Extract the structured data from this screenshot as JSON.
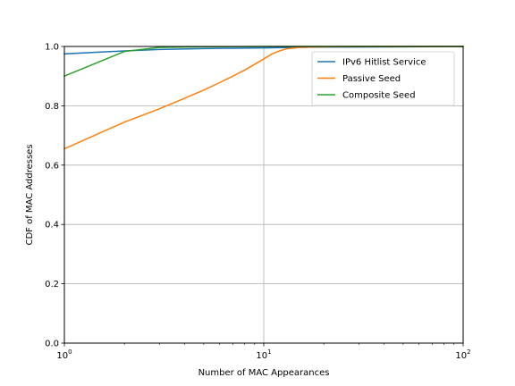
{
  "chart_data": {
    "type": "line",
    "title": "",
    "xlabel": "Number of MAC Appearances",
    "ylabel": "CDF of MAC Addresses",
    "xscale": "log",
    "xlim": [
      1,
      100
    ],
    "ylim": [
      0.0,
      1.0
    ],
    "xticks": [
      {
        "value": 1,
        "base": "10",
        "exp": "0"
      },
      {
        "value": 10,
        "base": "10",
        "exp": "1"
      },
      {
        "value": 100,
        "base": "10",
        "exp": "2"
      }
    ],
    "yticks": [
      {
        "value": 0.0,
        "label": "0.0"
      },
      {
        "value": 0.2,
        "label": "0.2"
      },
      {
        "value": 0.4,
        "label": "0.4"
      },
      {
        "value": 0.6,
        "label": "0.6"
      },
      {
        "value": 0.8,
        "label": "0.8"
      },
      {
        "value": 1.0,
        "label": "1.0"
      }
    ],
    "grid": true,
    "legend_position": "upper-right",
    "series": [
      {
        "name": "IPv6 Hitlist Service",
        "color": "#1f77b4",
        "x": [
          1,
          2,
          3,
          5,
          10,
          15,
          20,
          50,
          100
        ],
        "y": [
          0.975,
          0.985,
          0.99,
          0.993,
          0.995,
          0.997,
          0.998,
          0.999,
          1.0
        ]
      },
      {
        "name": "Passive Seed",
        "color": "#ff7f0e",
        "x": [
          1,
          2,
          3,
          4,
          5,
          6,
          7,
          8,
          9,
          10,
          11,
          12,
          13,
          15,
          20,
          30,
          50,
          100
        ],
        "y": [
          0.655,
          0.745,
          0.79,
          0.825,
          0.853,
          0.878,
          0.9,
          0.92,
          0.94,
          0.958,
          0.975,
          0.985,
          0.992,
          0.997,
          0.999,
          1.0,
          1.0,
          1.0
        ]
      },
      {
        "name": "Composite Seed",
        "color": "#2ca02c",
        "x": [
          1,
          2,
          3,
          5,
          10,
          20,
          50,
          100
        ],
        "y": [
          0.9,
          0.983,
          0.997,
          0.999,
          1.0,
          1.0,
          1.0,
          1.0
        ]
      }
    ]
  }
}
